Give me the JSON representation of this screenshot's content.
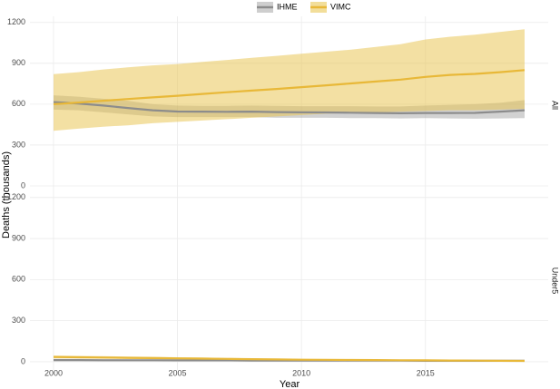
{
  "chart_data": {
    "type": "line",
    "xlabel": "Year",
    "ylabel": "Deaths (thousands)",
    "x": [
      2000,
      2001,
      2002,
      2003,
      2004,
      2005,
      2006,
      2007,
      2008,
      2009,
      2010,
      2011,
      2012,
      2013,
      2014,
      2015,
      2016,
      2017,
      2018,
      2019
    ],
    "xlim": [
      1999.05,
      2019.95
    ],
    "xticks": [
      2000,
      2005,
      2010,
      2015
    ],
    "ylim": [
      -60,
      1245
    ],
    "yticks": [
      0,
      300,
      600,
      900,
      1200
    ],
    "grid": true,
    "legend": "top",
    "panels": [
      "All",
      "Under5"
    ],
    "series": [
      {
        "name": "IHME",
        "color": "#8c8c8c",
        "band_color": "#a6a6a6",
        "panels": [
          {
            "values": [
              615,
              605,
              590,
              572,
              555,
              546,
              545,
              544,
              545,
              542,
              540,
              539,
              537,
              535,
              533,
              535,
              535,
              536,
              545,
              555
            ],
            "lower": [
              560,
              555,
              540,
              525,
              510,
              505,
              505,
              505,
              505,
              500,
              500,
              500,
              498,
              497,
              495,
              497,
              495,
              493,
              495,
              498
            ],
            "upper": [
              665,
              655,
              640,
              625,
              600,
              590,
              588,
              588,
              590,
              588,
              585,
              585,
              585,
              583,
              583,
              590,
              595,
              600,
              610,
              630
            ]
          },
          {
            "values": [
              12,
              12,
              11,
              11,
              11,
              10,
              10,
              10,
              9,
              9,
              9,
              8,
              8,
              8,
              8,
              7,
              7,
              7,
              7,
              7
            ],
            "lower": [
              5,
              5,
              5,
              5,
              5,
              4,
              4,
              4,
              4,
              4,
              4,
              3,
              3,
              3,
              3,
              3,
              3,
              3,
              3,
              3
            ],
            "upper": [
              20,
              20,
              19,
              18,
              17,
              16,
              15,
              15,
              14,
              13,
              13,
              12,
              12,
              12,
              11,
              11,
              11,
              11,
              10,
              10
            ]
          }
        ]
      },
      {
        "name": "VIMC",
        "color": "#e8b838",
        "band_color": "#e8c247",
        "panels": [
          {
            "values": [
              600,
              612,
              625,
              638,
              650,
              662,
              675,
              688,
              700,
              712,
              725,
              738,
              752,
              766,
              780,
              800,
              815,
              822,
              835,
              850
            ],
            "lower": [
              405,
              420,
              435,
              445,
              460,
              470,
              480,
              490,
              500,
              510,
              520,
              530,
              535,
              540,
              545,
              550,
              555,
              555,
              560,
              565
            ],
            "upper": [
              820,
              835,
              855,
              870,
              885,
              895,
              910,
              925,
              940,
              955,
              970,
              985,
              1000,
              1020,
              1040,
              1075,
              1095,
              1110,
              1130,
              1150
            ]
          },
          {
            "values": [
              35,
              33,
              31,
              29,
              27,
              25,
              23,
              21,
              19,
              17,
              15,
              14,
              13,
              12,
              11,
              10,
              9,
              8,
              7,
              6
            ],
            "lower": [
              25,
              24,
              22,
              20,
              18,
              17,
              15,
              14,
              12,
              11,
              10,
              9,
              8,
              7,
              7,
              6,
              5,
              5,
              4,
              4
            ],
            "upper": [
              45,
              43,
              41,
              38,
              36,
              33,
              31,
              28,
              25,
              22,
              20,
              18,
              17,
              15,
              14,
              13,
              12,
              11,
              10,
              9
            ]
          }
        ]
      }
    ]
  }
}
